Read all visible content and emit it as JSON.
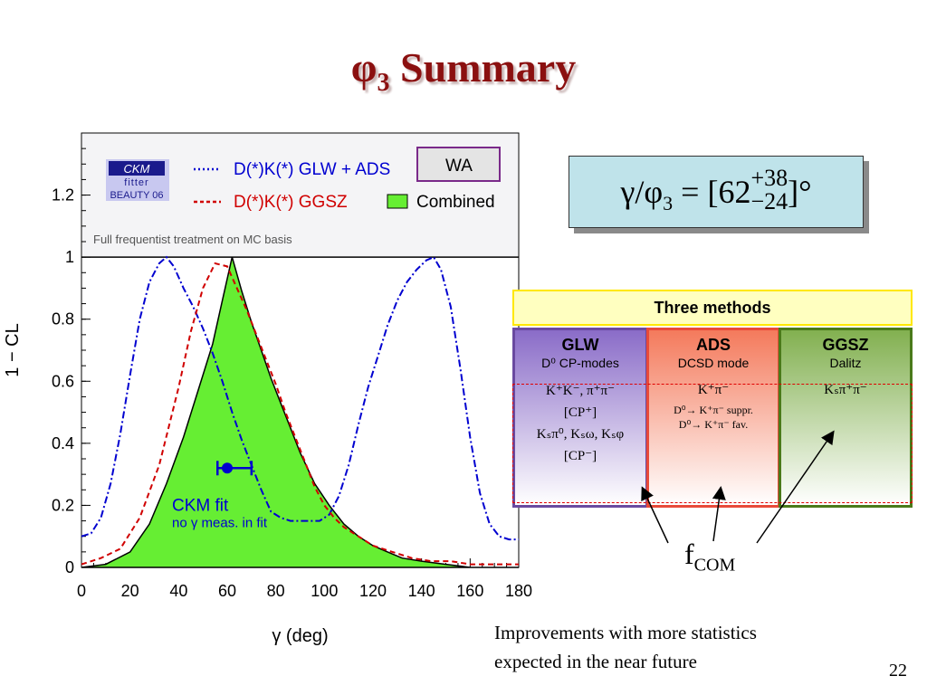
{
  "slide": {
    "title_main": "φ",
    "title_sub": "3",
    "title_rest": " Summary",
    "page_number": "22"
  },
  "formula": {
    "lhs": "γ/φ",
    "lhs_sub": "3",
    "eq": " = [62",
    "plus": "+38",
    "minus": "−24",
    "rhs": "]°"
  },
  "methods": {
    "header": "Three methods",
    "glw": {
      "name": "GLW",
      "sub": "D⁰ CP-modes",
      "line1": "K⁺K⁻, π⁺π⁻",
      "line2": "[CP⁺]",
      "line3": "Kₛπ⁰, Kₛω, Kₛφ",
      "line4": "[CP⁻]"
    },
    "ads": {
      "name": "ADS",
      "sub": "DCSD mode",
      "line1": "K⁺π⁻",
      "line2": "D⁰→ K⁺π⁻ suppr.",
      "line3": "D⁰→ K⁺π⁻ fav."
    },
    "ggsz": {
      "name": "GGSZ",
      "sub": "Dalitz",
      "line1": "Kₛπ⁺π⁻"
    }
  },
  "fcom": {
    "main": "f",
    "sub": "COM"
  },
  "note": {
    "line1": "Improvements with more statistics",
    "line2": "expected in the near future"
  },
  "colors": {
    "title": "#8b1010",
    "glw_line": "#0000d0",
    "ggsz_line": "#d00000",
    "combined_fill": "#66ee33",
    "ckm_point": "#0000d0"
  },
  "chart_data": {
    "type": "line",
    "ylabel": "1 − CL",
    "xlabel": "γ    (deg)",
    "xlim": [
      0,
      180
    ],
    "ylim": [
      0,
      1.4
    ],
    "x_ticks": [
      0,
      20,
      40,
      60,
      80,
      100,
      120,
      140,
      160,
      180
    ],
    "y_ticks": [
      0,
      0.2,
      0.4,
      0.6,
      0.8,
      1,
      1.2
    ],
    "y_tick_labels": [
      "0",
      "0.2",
      "0.4",
      "0.6",
      "0.8",
      "1",
      "1.2"
    ],
    "logo": {
      "line1": "CKM",
      "line2": "fitter",
      "line3": "BEAUTY 06"
    },
    "legend": {
      "glw_label": "D(*)K(*) GLW + ADS",
      "ggsz_label": "D(*)K(*) GGSZ",
      "wa_label": "WA",
      "combined_label": "Combined"
    },
    "note": "Full frequentist treatment on MC basis",
    "ckm_fit": {
      "label": "CKM fit",
      "sublabel": "no γ meas. in fit",
      "value": 60,
      "err_low": 56,
      "err_high": 70,
      "y": 0.32
    },
    "series": [
      {
        "name": "D(*)K(*) GLW + ADS",
        "style": "dash-dot",
        "x": [
          0,
          4,
          8,
          12,
          16,
          20,
          24,
          28,
          32,
          35,
          38,
          42,
          46,
          50,
          54,
          58,
          62,
          66,
          70,
          74,
          78,
          82,
          86,
          90,
          94,
          98,
          102,
          106,
          110,
          114,
          118,
          122,
          126,
          130,
          134,
          138,
          142,
          145,
          148,
          152,
          156,
          160,
          164,
          168,
          172,
          176,
          180
        ],
        "y": [
          0.1,
          0.11,
          0.16,
          0.27,
          0.43,
          0.62,
          0.8,
          0.92,
          0.98,
          1.0,
          0.97,
          0.9,
          0.84,
          0.77,
          0.69,
          0.6,
          0.5,
          0.41,
          0.33,
          0.25,
          0.18,
          0.16,
          0.15,
          0.15,
          0.15,
          0.15,
          0.17,
          0.23,
          0.33,
          0.46,
          0.58,
          0.68,
          0.78,
          0.86,
          0.92,
          0.96,
          0.99,
          1.0,
          0.96,
          0.84,
          0.64,
          0.42,
          0.24,
          0.14,
          0.1,
          0.09,
          0.09
        ]
      },
      {
        "name": "D(*)K(*) GGSZ",
        "style": "dashed",
        "x": [
          0,
          8,
          16,
          24,
          32,
          40,
          45,
          50,
          55,
          60,
          64,
          68,
          72,
          76,
          80,
          84,
          88,
          92,
          96,
          100,
          104,
          108,
          112,
          116,
          120,
          128,
          136,
          144,
          152,
          160,
          170,
          180
        ],
        "y": [
          0.01,
          0.03,
          0.06,
          0.16,
          0.33,
          0.58,
          0.76,
          0.9,
          0.98,
          0.97,
          0.9,
          0.83,
          0.75,
          0.67,
          0.59,
          0.5,
          0.42,
          0.34,
          0.26,
          0.2,
          0.16,
          0.13,
          0.11,
          0.09,
          0.07,
          0.05,
          0.03,
          0.02,
          0.02,
          0.01,
          0.01,
          0.01
        ]
      },
      {
        "name": "Combined",
        "style": "filled",
        "x": [
          0,
          10,
          20,
          28,
          35,
          42,
          48,
          54,
          58,
          62,
          66,
          70,
          74,
          78,
          82,
          86,
          90,
          96,
          102,
          108,
          114,
          120,
          126,
          132,
          140,
          150,
          160,
          180
        ],
        "y": [
          0.0,
          0.01,
          0.05,
          0.14,
          0.27,
          0.42,
          0.57,
          0.72,
          0.86,
          1.0,
          0.89,
          0.79,
          0.7,
          0.61,
          0.53,
          0.45,
          0.37,
          0.27,
          0.2,
          0.14,
          0.1,
          0.07,
          0.05,
          0.03,
          0.02,
          0.01,
          0.0,
          0.0
        ]
      }
    ]
  }
}
